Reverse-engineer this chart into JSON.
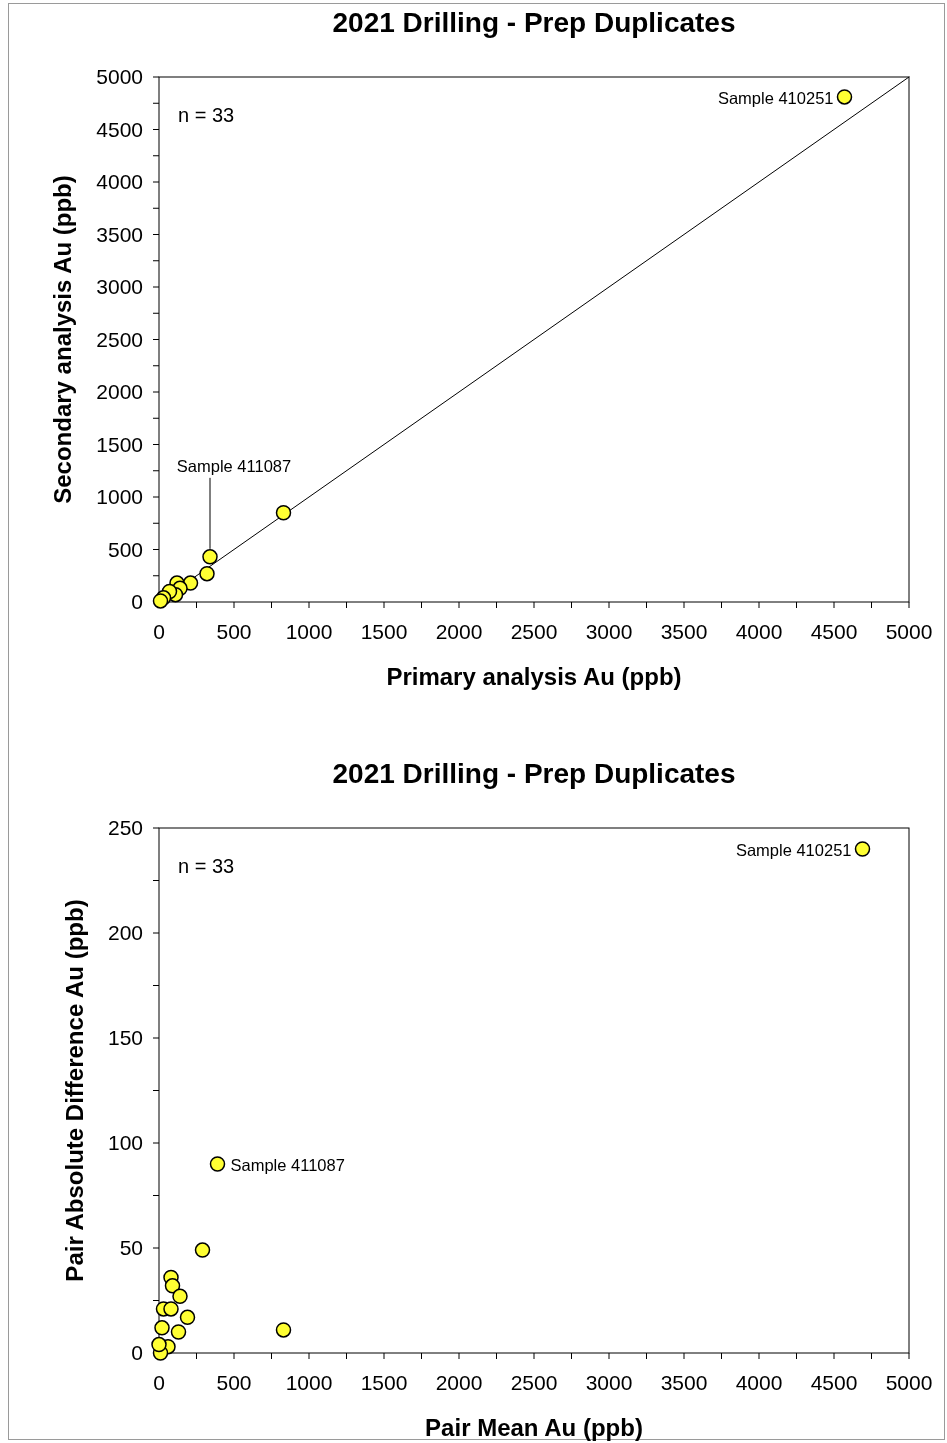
{
  "chart_data": [
    {
      "type": "scatter",
      "title": "2021 Drilling - Prep Duplicates",
      "xlabel": "Primary analysis Au (ppb)",
      "ylabel": "Secondary analysis Au (ppb)",
      "xlim": [
        0,
        5000
      ],
      "ylim": [
        0,
        5000
      ],
      "xticks": [
        0,
        {
          "value": 250,
          "label": null
        },
        500,
        {
          "value": 750,
          "label": null
        },
        1000,
        {
          "value": 1250,
          "label": null
        },
        1500,
        {
          "value": 1750,
          "label": null
        },
        2000,
        {
          "value": 2250,
          "label": null
        },
        2500,
        {
          "value": 2750,
          "label": null
        },
        3000,
        {
          "value": 3250,
          "label": null
        },
        3500,
        {
          "value": 3750,
          "label": null
        },
        4000,
        {
          "value": 4250,
          "label": null
        },
        4500,
        {
          "value": 4750,
          "label": null
        },
        5000
      ],
      "yticks": [
        0,
        {
          "value": 250,
          "label": null
        },
        500,
        {
          "value": 750,
          "label": null
        },
        1000,
        {
          "value": 1250,
          "label": null
        },
        1500,
        {
          "value": 1750,
          "label": null
        },
        2000,
        {
          "value": 2250,
          "label": null
        },
        2500,
        {
          "value": 2750,
          "label": null
        },
        3000,
        {
          "value": 3250,
          "label": null
        },
        3500,
        {
          "value": 3750,
          "label": null
        },
        4000,
        {
          "value": 4250,
          "label": null
        },
        4500,
        {
          "value": 4750,
          "label": null
        },
        5000
      ],
      "series": [
        {
          "type": "line",
          "color": "#000000",
          "x": [
            0,
            5000
          ],
          "values": [
            0,
            5000
          ]
        },
        {
          "color": "#ffff33",
          "marker": "circle",
          "x": [
            4570,
            830,
            340,
            320,
            210,
            120,
            140,
            110,
            70,
            30,
            10
          ],
          "values": [
            4810,
            850,
            430,
            270,
            180,
            180,
            130,
            70,
            100,
            40,
            10
          ]
        }
      ],
      "annotations": [
        "n = 33",
        {
          "text": "Sample 410251",
          "x": 4570,
          "y": 4810
        },
        {
          "text": "Sample 411087",
          "x": 340,
          "y": 430
        }
      ]
    },
    {
      "type": "scatter",
      "title": "2021 Drilling - Prep Duplicates",
      "xlabel": "Pair Mean Au (ppb)",
      "ylabel": "Pair Absolute Difference Au (ppb)",
      "xlim": [
        0,
        5000
      ],
      "ylim": [
        0,
        250
      ],
      "xticks": [
        0,
        {
          "value": 250,
          "label": null
        },
        500,
        {
          "value": 750,
          "label": null
        },
        1000,
        {
          "value": 1250,
          "label": null
        },
        1500,
        {
          "value": 1750,
          "label": null
        },
        2000,
        {
          "value": 2250,
          "label": null
        },
        2500,
        {
          "value": 2750,
          "label": null
        },
        3000,
        {
          "value": 3250,
          "label": null
        },
        3500,
        {
          "value": 3750,
          "label": null
        },
        4000,
        {
          "value": 4250,
          "label": null
        },
        4500,
        {
          "value": 4750,
          "label": null
        },
        5000
      ],
      "yticks": [
        0,
        {
          "value": 25,
          "label": null
        },
        50,
        {
          "value": 75,
          "label": null
        },
        100,
        {
          "value": 125,
          "label": null
        },
        150,
        {
          "value": 175,
          "label": null
        },
        200,
        {
          "value": 225,
          "label": null
        },
        250
      ],
      "series": [
        {
          "color": "#ffff33",
          "marker": "circle",
          "x": [
            4690,
            390,
            290,
            80,
            90,
            140,
            30,
            80,
            190,
            20,
            130,
            830,
            60,
            10,
            0
          ],
          "values": [
            240,
            90,
            49,
            36,
            32,
            27,
            21,
            21,
            17,
            12,
            10,
            11,
            3,
            0,
            4
          ]
        }
      ],
      "annotations": [
        "n = 33",
        {
          "text": "Sample 410251",
          "x": 4690,
          "y": 240
        },
        {
          "text": "Sample 411087",
          "x": 390,
          "y": 90
        }
      ]
    }
  ]
}
